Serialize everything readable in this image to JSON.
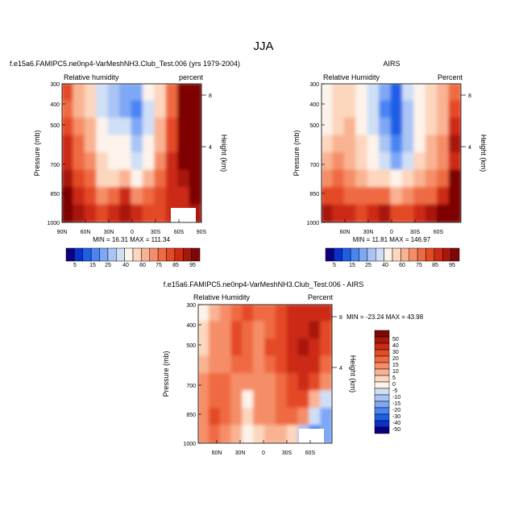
{
  "main_title": "JJA",
  "chart_data": [
    {
      "type": "heatmap",
      "title": "f.e15a6.FAMIPC5.ne0np4-VarMeshNH3.Club_Test.006 (yrs 1979-2004)",
      "left_label": "Relative humidity",
      "right_label": "percent",
      "xlabel": "",
      "ylabel": "Pressure (mb)",
      "ylabel_right": "Height (km)",
      "x_ticks": [
        "90N",
        "60N",
        "30N",
        "0",
        "30S",
        "60S",
        "90S"
      ],
      "y_ticks": [
        "300",
        "400",
        "500",
        "700",
        "850",
        "1000"
      ],
      "height_ticks": [
        "8",
        "4"
      ],
      "min_label": "MIN =",
      "min_value": "16.31",
      "max_label": "MAX =",
      "max_value": "111.34",
      "colorbar_labels": [
        "5",
        "15",
        "25",
        "40",
        "60",
        "75",
        "85",
        "95"
      ],
      "field": [
        [
          76,
          62,
          56,
          30,
          25,
          22,
          20,
          42,
          58,
          72,
          90,
          100
        ],
        [
          74,
          63,
          55,
          32,
          28,
          22,
          18,
          38,
          58,
          74,
          92,
          102
        ],
        [
          76,
          66,
          60,
          40,
          36,
          30,
          22,
          36,
          60,
          76,
          92,
          104
        ],
        [
          80,
          70,
          62,
          44,
          40,
          40,
          26,
          40,
          62,
          78,
          94,
          108
        ],
        [
          82,
          74,
          65,
          50,
          46,
          48,
          33,
          47,
          66,
          80,
          90,
          100
        ],
        [
          86,
          78,
          70,
          58,
          56,
          62,
          47,
          60,
          74,
          82,
          86,
          96
        ],
        [
          92,
          82,
          76,
          66,
          72,
          80,
          68,
          72,
          78,
          80,
          82,
          92
        ],
        [
          95,
          86,
          80,
          76,
          80,
          88,
          80,
          78,
          78,
          80,
          82,
          88
        ]
      ]
    },
    {
      "type": "heatmap",
      "title": "AIRS",
      "left_label": "Relative Humidity",
      "right_label": "Percent",
      "xlabel": "",
      "ylabel": "Pressure (mb)",
      "ylabel_right": "Height (km)",
      "x_ticks": [
        "60N",
        "30N",
        "0",
        "30S",
        "60S"
      ],
      "y_ticks": [
        "300",
        "400",
        "500",
        "700",
        "850",
        "1000"
      ],
      "height_ticks": [
        "8",
        "4"
      ],
      "min_label": "MIN =",
      "min_value": "11.81",
      "max_label": "MAX =",
      "max_value": "146.97",
      "colorbar_labels": [
        "5",
        "15",
        "25",
        "40",
        "60",
        "75",
        "85",
        "95"
      ],
      "field": [
        [
          40,
          52,
          56,
          45,
          36,
          20,
          14,
          30,
          45,
          56,
          62,
          72
        ],
        [
          42,
          54,
          56,
          42,
          32,
          18,
          12,
          26,
          44,
          56,
          62,
          76
        ],
        [
          48,
          58,
          60,
          48,
          36,
          22,
          12,
          26,
          44,
          58,
          64,
          82
        ],
        [
          55,
          62,
          62,
          52,
          42,
          28,
          16,
          28,
          46,
          60,
          66,
          86
        ],
        [
          60,
          65,
          64,
          56,
          48,
          36,
          24,
          36,
          52,
          62,
          68,
          84
        ],
        [
          68,
          70,
          68,
          62,
          58,
          52,
          40,
          50,
          60,
          66,
          72,
          90
        ],
        [
          78,
          76,
          74,
          72,
          70,
          72,
          62,
          66,
          70,
          74,
          80,
          96
        ],
        [
          88,
          82,
          80,
          78,
          80,
          88,
          78,
          76,
          80,
          86,
          92,
          104
        ]
      ]
    },
    {
      "type": "heatmap",
      "title": "f.e15a6.FAMIPC5.ne0np4-VarMeshNH3.Club_Test.006 - AIRS",
      "left_label": "Relative Humidity",
      "right_label": "Percent",
      "xlabel": "",
      "ylabel": "Pressure (mb)",
      "ylabel_right": "Height (km)",
      "x_ticks": [
        "60N",
        "30N",
        "0",
        "30S",
        "60S"
      ],
      "y_ticks": [
        "300",
        "400",
        "500",
        "700",
        "850",
        "1000"
      ],
      "height_ticks": [
        "8",
        "4"
      ],
      "min_label": "MIN =",
      "min_value": "-23.24",
      "max_label": "MAX =",
      "max_value": "43.98",
      "colorbar_labels": [
        "50",
        "40",
        "30",
        "20",
        "15",
        "10",
        "5",
        "0",
        "-5",
        "-10",
        "-15",
        "-20",
        "-30",
        "-40",
        "-50"
      ],
      "field": [
        [
          -2,
          8,
          12,
          18,
          20,
          16,
          18,
          20,
          30,
          35,
          38,
          30
        ],
        [
          0,
          10,
          14,
          20,
          18,
          14,
          18,
          22,
          32,
          38,
          40,
          28
        ],
        [
          4,
          12,
          14,
          20,
          16,
          12,
          20,
          24,
          34,
          40,
          38,
          24
        ],
        [
          8,
          14,
          14,
          18,
          16,
          14,
          18,
          20,
          32,
          36,
          30,
          18
        ],
        [
          10,
          16,
          16,
          14,
          10,
          14,
          14,
          18,
          28,
          30,
          20,
          10
        ],
        [
          12,
          18,
          16,
          10,
          -4,
          10,
          12,
          18,
          24,
          22,
          8,
          -6
        ],
        [
          14,
          20,
          18,
          14,
          4,
          12,
          12,
          16,
          18,
          10,
          -10,
          -20
        ],
        [
          12,
          16,
          14,
          8,
          -2,
          4,
          6,
          8,
          2,
          -14,
          -22,
          -16
        ]
      ]
    }
  ]
}
